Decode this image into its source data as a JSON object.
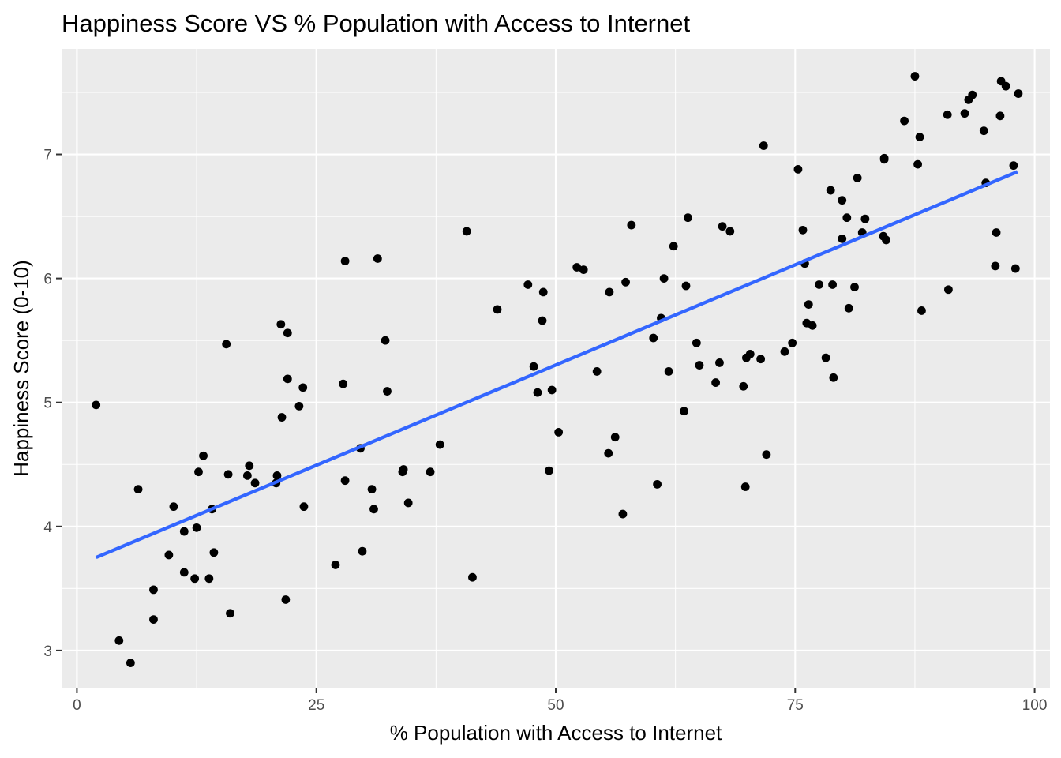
{
  "chart_data": {
    "type": "scatter",
    "title": "Happiness Score VS % Population with Access to Internet",
    "xlabel": "% Population with Access to Internet",
    "ylabel": "Happiness Score (0-10)",
    "xlim": [
      -1.6,
      101.6
    ],
    "ylim": [
      2.7,
      7.85
    ],
    "x_ticks": [
      0,
      25,
      50,
      75,
      100
    ],
    "y_ticks": [
      3,
      4,
      5,
      6,
      7
    ],
    "grid": true,
    "point_color": "#000000",
    "background_color": "#ebebeb",
    "trend_line": {
      "method": "linear",
      "color": "#3366ff",
      "x": [
        2.0,
        98.2
      ],
      "y": [
        3.75,
        6.86
      ]
    },
    "points": {
      "x": [
        2.0,
        4.4,
        5.6,
        6.4,
        8.0,
        8.0,
        9.6,
        10.1,
        11.2,
        11.2,
        12.3,
        12.5,
        12.7,
        13.2,
        13.8,
        14.1,
        14.3,
        15.6,
        15.8,
        16.0,
        17.8,
        18.0,
        18.6,
        20.8,
        20.9,
        21.3,
        21.4,
        21.8,
        22.0,
        22.0,
        23.2,
        23.6,
        23.7,
        27.0,
        27.8,
        28.0,
        28.0,
        29.6,
        29.8,
        30.8,
        31.0,
        31.4,
        32.2,
        32.4,
        34.0,
        34.1,
        34.6,
        36.9,
        37.9,
        40.7,
        41.3,
        43.9,
        47.1,
        47.7,
        48.1,
        48.6,
        48.7,
        49.3,
        49.6,
        50.3,
        52.2,
        52.9,
        54.3,
        55.5,
        55.6,
        56.2,
        57.0,
        57.3,
        57.9,
        60.2,
        60.6,
        61.0,
        61.3,
        61.8,
        62.3,
        63.4,
        63.6,
        63.8,
        64.7,
        65.0,
        66.7,
        67.1,
        67.4,
        68.2,
        69.6,
        69.8,
        69.9,
        70.3,
        71.4,
        71.7,
        72.0,
        73.9,
        74.7,
        75.3,
        75.8,
        76.0,
        76.2,
        76.4,
        76.8,
        77.5,
        78.2,
        78.7,
        78.9,
        79.0,
        79.9,
        79.9,
        80.4,
        80.6,
        81.2,
        81.5,
        82.0,
        82.3,
        84.2,
        84.3,
        84.3,
        84.5,
        86.4,
        87.5,
        87.8,
        88.0,
        88.2,
        90.9,
        91.0,
        92.7,
        93.1,
        93.5,
        94.7,
        94.9,
        95.9,
        96.0,
        96.4,
        96.5,
        97.0,
        97.8,
        98.0,
        98.3
      ],
      "y": [
        4.98,
        3.08,
        2.9,
        4.3,
        3.49,
        3.25,
        3.77,
        4.16,
        3.96,
        3.63,
        3.58,
        3.99,
        4.44,
        4.57,
        3.58,
        4.14,
        3.79,
        5.47,
        4.42,
        3.3,
        4.41,
        4.49,
        4.35,
        4.35,
        4.41,
        5.63,
        4.88,
        3.41,
        5.56,
        5.19,
        4.97,
        5.12,
        4.16,
        3.69,
        5.15,
        6.14,
        4.37,
        4.63,
        3.8,
        4.3,
        4.14,
        6.16,
        5.5,
        5.09,
        4.44,
        4.46,
        4.19,
        4.44,
        4.66,
        6.38,
        3.59,
        5.75,
        5.95,
        5.29,
        5.08,
        5.66,
        5.89,
        4.45,
        5.1,
        4.76,
        6.09,
        6.07,
        5.25,
        4.59,
        5.89,
        4.72,
        4.1,
        5.97,
        6.43,
        5.52,
        4.34,
        5.68,
        6.0,
        5.25,
        6.26,
        4.93,
        5.94,
        6.49,
        5.48,
        5.3,
        5.16,
        5.32,
        6.42,
        6.38,
        5.13,
        4.32,
        5.36,
        5.39,
        5.35,
        7.07,
        4.58,
        5.41,
        5.48,
        6.88,
        6.39,
        6.12,
        5.64,
        5.79,
        5.62,
        5.95,
        5.36,
        6.71,
        5.95,
        5.2,
        6.32,
        6.63,
        6.49,
        5.76,
        5.93,
        6.81,
        6.37,
        6.48,
        6.34,
        6.96,
        6.97,
        6.31,
        7.27,
        7.63,
        6.92,
        7.14,
        5.74,
        7.32,
        5.91,
        7.33,
        7.44,
        7.48,
        7.19,
        6.77,
        6.1,
        6.37,
        7.31,
        7.59,
        7.55,
        6.91,
        6.08,
        7.49
      ]
    }
  }
}
